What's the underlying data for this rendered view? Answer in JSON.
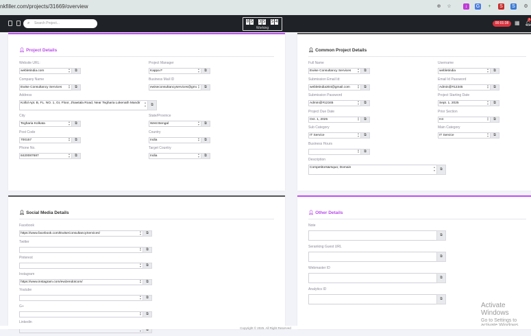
{
  "browser": {
    "url": "nkfiller.com/projects/31669/overview"
  },
  "nav": {
    "search_placeholder": "Search Project...",
    "clock_digits": [
      "0",
      "5",
      "3",
      "5",
      "5",
      "4"
    ],
    "clock_label": "Working",
    "timer": "00:01:38",
    "notification_count": "1"
  },
  "colors": {
    "accent": "#c04cf5",
    "dark": "#1f2226",
    "timer": "#d9333f"
  },
  "project_details": {
    "title": "Project Details",
    "fields": [
      {
        "label": "Website URL:",
        "value": "webletindia.com"
      },
      {
        "label": "Project Manager",
        "value": "Kappa F"
      },
      {
        "label": "Company Name",
        "value": "Ewise Consultancy Services"
      },
      {
        "label": "Business Mail ID",
        "value": "ewiseconsultancyservices@gma"
      },
      {
        "label": "Address",
        "value": "Kollol Apt. B, FL. NO. 1, Gr, Floor, Jhawtala Road, Near Tegharia Lokenath Mandir",
        "wide": true
      },
      {
        "label": "City",
        "value": "Tegharia Kolkata"
      },
      {
        "label": "State/Province",
        "value": "West Bengal"
      },
      {
        "label": "Post Code",
        "value": "700157"
      },
      {
        "label": "Country",
        "value": "India"
      },
      {
        "label": "Phone No.",
        "value": "8420087687"
      },
      {
        "label": "Target Country",
        "value": "India"
      }
    ]
  },
  "common_details": {
    "title": "Common Project Details",
    "fields": [
      {
        "label": "Full Name",
        "value": "Ewise Consultancy Services"
      },
      {
        "label": "Username",
        "value": "webletindia"
      },
      {
        "label": "Submission Email Id:",
        "value": "webletindia304@gmail.com"
      },
      {
        "label": "Email Id Password",
        "value": "Admin@#12345"
      },
      {
        "label": "Submission Password",
        "value": "Admin@#12345"
      },
      {
        "label": "Project Starting Date",
        "value": "Sept. 1, 2025"
      },
      {
        "label": "Project Due Date",
        "value": "Oct. 1, 2025"
      },
      {
        "label": "Prior Section",
        "value": "H4"
      },
      {
        "label": "Sub Category",
        "value": "IT Service"
      },
      {
        "label": "Main Category",
        "value": "IT Service"
      },
      {
        "label": "Business Hours",
        "value": "",
        "wide_single": true
      },
      {
        "label": "Description",
        "value": "Competitors&rsquo; Domain",
        "wide": true
      }
    ]
  },
  "social_details": {
    "title": "Social Media Details",
    "fields": [
      {
        "label": "Facebook",
        "value": "https://www.facebook.com/EwiseConsultancyServices/"
      },
      {
        "label": "Twitter",
        "value": ""
      },
      {
        "label": "Pinterest",
        "value": ""
      },
      {
        "label": "Instagram",
        "value": "https://www.instagram.com/ewizendotcom/"
      },
      {
        "label": "Youtube",
        "value": ""
      },
      {
        "label": "G+",
        "value": ""
      },
      {
        "label": "Linkedin",
        "value": ""
      }
    ]
  },
  "other_details": {
    "title": "Other Details",
    "fields": [
      {
        "label": "Note",
        "value": ""
      },
      {
        "label": "Seranking Guest URL",
        "value": ""
      },
      {
        "label": "Webmaster ID",
        "value": ""
      },
      {
        "label": "Analytics ID",
        "value": ""
      }
    ]
  },
  "footer": {
    "copyright": "Copyright © 2025. All Right Reserved"
  },
  "watermark": {
    "line1": "Activate Windows",
    "line2": "Go to Settings to activate Windows."
  }
}
